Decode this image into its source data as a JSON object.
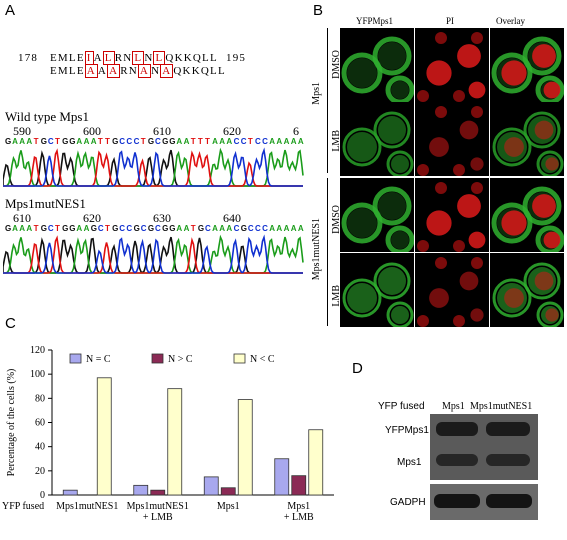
{
  "panels": {
    "a": "A",
    "b": "B",
    "c": "C",
    "d": "D"
  },
  "panelA": {
    "seq_start": "178",
    "seq_end": "195",
    "seq1": [
      "E",
      "M",
      "L",
      "E",
      "I",
      "A",
      "L",
      "R",
      "N",
      "L",
      "N",
      "L",
      "Q",
      "K",
      "K",
      "Q",
      "L",
      "L"
    ],
    "seq2": [
      "E",
      "M",
      "L",
      "E",
      "A",
      "A",
      "A",
      "R",
      "N",
      "A",
      "N",
      "A",
      "Q",
      "K",
      "K",
      "Q",
      "L",
      "L"
    ],
    "boxed_idx": [
      4,
      6,
      9,
      11
    ],
    "wt_title": "Wild type Mps1",
    "wt_ticks": [
      "590",
      "600",
      "610",
      "620",
      "6"
    ],
    "wt_bases": "GAAATGCTGGAAATTGCCCTGCGGAATTTAAACCTCCAAAAA",
    "mut_title": "Mps1mutNES1",
    "mut_ticks": [
      "610",
      "620",
      "630",
      "640"
    ],
    "mut_bases": "GAAATGCTGGAAGCTGCCGCGCGGAATGCAAACGCCCAAAAA"
  },
  "panelB": {
    "columns": [
      "YFPMps1",
      "PI",
      "Overlay"
    ],
    "groups": [
      "Mps1",
      "Mps1mutNES1"
    ],
    "rows": [
      "DMSO",
      "LMB",
      "DMSO",
      "LMB"
    ]
  },
  "panelC": {
    "prefix": "YFP fused",
    "chart_data": {
      "type": "bar",
      "categories": [
        "Mps1mutNES1",
        "Mps1mutNES1\n+ LMB",
        "Mps1",
        "Mps1\n+ LMB"
      ],
      "series": [
        {
          "name": "N = C",
          "values": [
            4,
            8,
            15,
            30
          ],
          "color": "#a8a8ee"
        },
        {
          "name": "N > C",
          "values": [
            0,
            4,
            6,
            16
          ],
          "color": "#8b2a55"
        },
        {
          "name": "N < C",
          "values": [
            97,
            88,
            79,
            54
          ],
          "color": "#ffffcc"
        }
      ],
      "ylabel": "Percentage of the cells (%)",
      "ylim": [
        0,
        120
      ],
      "yticks": [
        0,
        20,
        40,
        60,
        80,
        100,
        120
      ]
    }
  },
  "panelD": {
    "fused_label": "YFP fused",
    "cols": [
      "Mps1",
      "Mps1mutNES1"
    ],
    "rows": [
      "YFPMps1",
      "Mps1",
      "GADPH"
    ]
  }
}
